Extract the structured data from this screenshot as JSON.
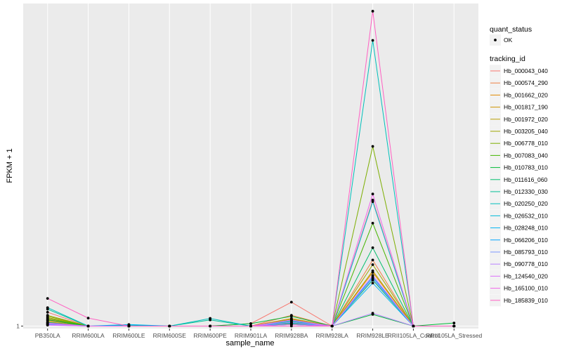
{
  "chart_data": {
    "type": "line",
    "xlabel": "sample_name",
    "ylabel": "FPKM + 1",
    "categories": [
      "PB350LA",
      "RRIM600LA",
      "RRIM600LE",
      "RRIM600SE",
      "RRIM600PE",
      "RRIM901LA",
      "RRIM928BA",
      "RRIM928LA",
      "RRIM928LE",
      "RRII105LA_Control",
      "RRII105LA_Stressed"
    ],
    "y_ticks": [
      {
        "value": 1,
        "label": "1"
      }
    ],
    "ylim": [
      0.92,
      11.5
    ],
    "grid": true,
    "legend_position": "right",
    "legend_shape": {
      "title": "quant_status",
      "items": [
        "OK"
      ]
    },
    "legend_color_title": "tracking_id",
    "series": [
      {
        "name": "Hb_000043_040",
        "color": "#F8766D",
        "values": [
          1.45,
          1.0,
          1.0,
          1.0,
          1.0,
          1.08,
          1.78,
          1.0,
          5.1,
          1.0,
          1.0
        ]
      },
      {
        "name": "Hb_000574_290",
        "color": "#EE8043",
        "values": [
          1.22,
          1.0,
          1.0,
          1.0,
          1.0,
          1.0,
          1.35,
          1.0,
          3.15,
          1.0,
          1.0
        ]
      },
      {
        "name": "Hb_001662_020",
        "color": "#E18A00",
        "values": [
          1.18,
          1.0,
          1.0,
          1.0,
          1.0,
          1.0,
          1.25,
          1.0,
          2.75,
          1.0,
          1.0
        ]
      },
      {
        "name": "Hb_001817_190",
        "color": "#CF9400",
        "values": [
          1.14,
          1.0,
          1.0,
          1.0,
          1.0,
          1.0,
          1.15,
          1.0,
          2.5,
          1.0,
          1.0
        ]
      },
      {
        "name": "Hb_001972_020",
        "color": "#B99E00",
        "values": [
          1.28,
          1.0,
          1.0,
          1.0,
          1.0,
          1.0,
          1.2,
          1.0,
          2.8,
          1.0,
          1.0
        ]
      },
      {
        "name": "Hb_003205_040",
        "color": "#9EA700",
        "values": [
          1.35,
          1.0,
          1.0,
          1.0,
          1.0,
          1.0,
          1.1,
          1.0,
          3.0,
          1.0,
          1.0
        ]
      },
      {
        "name": "Hb_006778_010",
        "color": "#7CAE00",
        "values": [
          1.32,
          1.0,
          1.0,
          1.0,
          1.0,
          1.0,
          1.22,
          1.0,
          6.85,
          1.0,
          1.0
        ]
      },
      {
        "name": "Hb_007083_040",
        "color": "#45B500",
        "values": [
          1.25,
          1.0,
          1.0,
          1.0,
          1.0,
          1.0,
          1.08,
          1.0,
          4.35,
          1.0,
          1.0
        ]
      },
      {
        "name": "Hb_010783_010",
        "color": "#00BA38",
        "values": [
          1.2,
          1.0,
          1.0,
          1.0,
          1.0,
          1.08,
          1.32,
          1.0,
          1.38,
          1.0,
          1.1
        ]
      },
      {
        "name": "Hb_011616_060",
        "color": "#00BE6C",
        "values": [
          1.12,
          1.0,
          1.0,
          1.0,
          1.0,
          1.0,
          1.18,
          1.0,
          3.55,
          1.0,
          1.0
        ]
      },
      {
        "name": "Hb_012330_030",
        "color": "#00BF96",
        "values": [
          1.55,
          1.0,
          1.0,
          1.0,
          1.2,
          1.0,
          1.12,
          1.0,
          2.5,
          1.0,
          1.0
        ]
      },
      {
        "name": "Hb_020250_020",
        "color": "#00BFBB",
        "values": [
          1.6,
          1.0,
          1.03,
          1.0,
          1.25,
          1.0,
          1.15,
          1.0,
          10.3,
          1.0,
          1.0
        ]
      },
      {
        "name": "Hb_026532_010",
        "color": "#00BBDA",
        "values": [
          1.1,
          1.0,
          1.0,
          1.0,
          1.0,
          1.0,
          1.05,
          1.0,
          5.05,
          1.0,
          1.0
        ]
      },
      {
        "name": "Hb_028248_010",
        "color": "#00B3F2",
        "values": [
          1.05,
          1.0,
          1.05,
          1.0,
          1.0,
          1.0,
          1.05,
          1.0,
          2.4,
          1.0,
          1.0
        ]
      },
      {
        "name": "Hb_066206_010",
        "color": "#00A5FF",
        "values": [
          1.04,
          1.0,
          1.0,
          1.0,
          1.0,
          1.0,
          1.1,
          1.0,
          2.6,
          1.0,
          1.0
        ]
      },
      {
        "name": "Hb_085793_010",
        "color": "#7C96FF",
        "values": [
          1.08,
          1.0,
          1.0,
          1.0,
          1.0,
          1.0,
          1.18,
          1.0,
          2.55,
          1.0,
          1.0
        ]
      },
      {
        "name": "Hb_090778_010",
        "color": "#B983FF",
        "values": [
          1.06,
          1.0,
          1.0,
          1.0,
          1.0,
          1.0,
          1.12,
          1.0,
          1.42,
          1.0,
          1.0
        ]
      },
      {
        "name": "Hb_124540_020",
        "color": "#DC71FA",
        "values": [
          1.03,
          1.0,
          1.0,
          1.0,
          1.0,
          1.0,
          1.05,
          1.0,
          2.65,
          1.0,
          1.0
        ]
      },
      {
        "name": "Hb_165100_010",
        "color": "#F066EA",
        "values": [
          1.1,
          1.0,
          1.0,
          1.0,
          1.0,
          1.0,
          1.2,
          1.0,
          5.3,
          1.0,
          1.0
        ]
      },
      {
        "name": "Hb_185839_010",
        "color": "#FF61C3",
        "values": [
          1.9,
          1.26,
          1.0,
          1.0,
          1.0,
          1.0,
          1.0,
          1.0,
          11.25,
          1.0,
          1.0
        ]
      }
    ]
  },
  "colors": {
    "panel_background": "#EBEBEB",
    "grid_line": "#FFFFFF",
    "point": "#000000"
  }
}
